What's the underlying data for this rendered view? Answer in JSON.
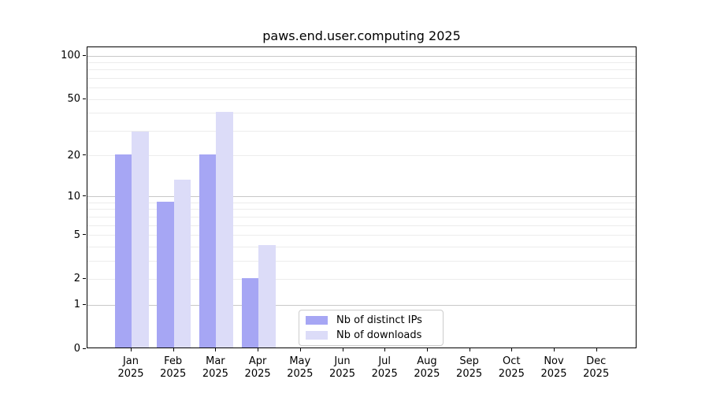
{
  "chart_data": {
    "type": "bar",
    "title": "paws.end.user.computing 2025",
    "categories": [
      "Jan",
      "Feb",
      "Mar",
      "Apr",
      "May",
      "Jun",
      "Jul",
      "Aug",
      "Sep",
      "Oct",
      "Nov",
      "Dec"
    ],
    "x_tick_year_line": "2025",
    "series": [
      {
        "name": "Nb of distinct IPs",
        "color": "#a6a6f4",
        "values": [
          20,
          9,
          20,
          2,
          0,
          0,
          0,
          0,
          0,
          0,
          0,
          0
        ]
      },
      {
        "name": "Nb of downloads",
        "color": "#dcdcf8",
        "values": [
          29,
          13,
          40,
          4,
          0,
          0,
          0,
          0,
          0,
          0,
          0,
          0
        ]
      }
    ],
    "y_axis": {
      "scale": "log10(1+x)",
      "tick_labels": [
        "0",
        "1",
        "2",
        "5",
        "10",
        "20",
        "50",
        "100"
      ],
      "tick_values": [
        0,
        1,
        2,
        5,
        10,
        20,
        50,
        100
      ],
      "minor_gridline_values": [
        2,
        3,
        4,
        5,
        6,
        7,
        8,
        9,
        20,
        30,
        40,
        50,
        60,
        70,
        80,
        90
      ],
      "major_gridline_values": [
        1,
        10,
        100
      ],
      "ylim": [
        0,
        114
      ]
    },
    "legend": {
      "position": "lower-center-left",
      "entries": [
        "Nb of distinct IPs",
        "Nb of downloads"
      ]
    },
    "colors": {
      "distinct_ips": "#a6a6f4",
      "downloads": "#dcdcf8",
      "minor_gridline": "#ececec",
      "major_gridline": "#c8c8c8",
      "axis": "#000000",
      "legend_border": "#cccccc",
      "background": "#ffffff",
      "text": "#000000"
    },
    "grid": true
  }
}
